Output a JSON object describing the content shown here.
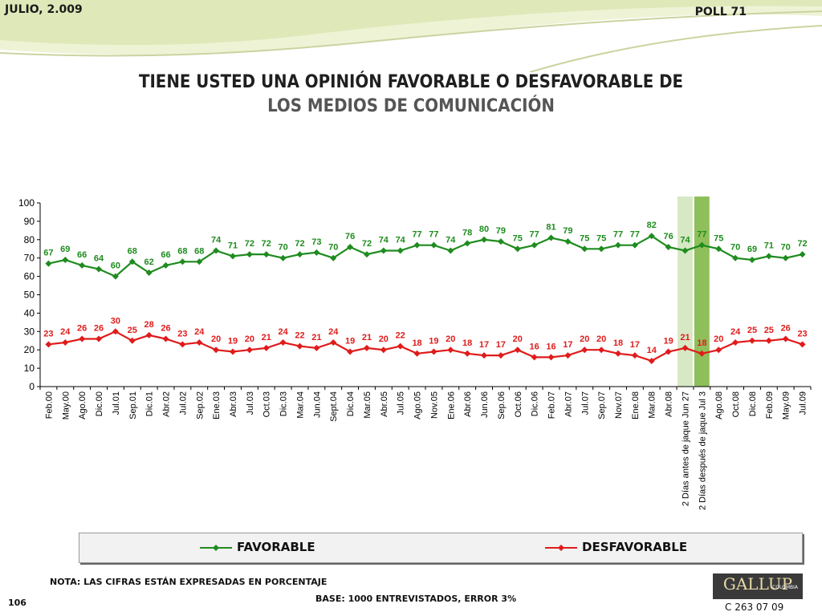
{
  "header": {
    "date": "JULIO, 2.009",
    "poll": "POLL 71"
  },
  "title": {
    "line1": "TIENE USTED UNA OPINIÓN FAVORABLE O DESFAVORABLE DE",
    "line2": "LOS MEDIOS DE COMUNICACIÓN"
  },
  "footer": {
    "note": "NOTA: LAS CIFRAS ESTÁN EXPRESADAS EN PORCENTAJE",
    "base": "BASE: 1000 ENTREVISTADOS, ERROR 3%",
    "page": "106",
    "logo": "GALLUP",
    "logo_sub": "COLOMBIA",
    "code": "C 263 07 09"
  },
  "colors": {
    "favorable": "#1e8c1e",
    "desfavorable": "#e01b1b",
    "band_light": "#d6e8c4",
    "band_dark": "#8fbf5a"
  },
  "chart_data": {
    "type": "line",
    "ylim": [
      0,
      100
    ],
    "yticks": [
      0,
      10,
      20,
      30,
      40,
      50,
      60,
      70,
      80,
      90,
      100
    ],
    "grid": false,
    "legend_position": "bottom",
    "highlighted_categories": [
      "2 Días antes de jaque Jun 27",
      "2 Días después de jaque Jul 3"
    ],
    "categories": [
      "Feb.00",
      "May.00",
      "Ago.00",
      "Dic.00",
      "Jul.01",
      "Sep.01",
      "Dic.01",
      "Abr.02",
      "Jul.02",
      "Sep.02",
      "Ene.03",
      "Abr.03",
      "Jul.03",
      "Oct.03",
      "Dic.03",
      "Mar.04",
      "Jun.04",
      "Sept.04",
      "Dic.04",
      "Mar.05",
      "Abr.05",
      "Jul.05",
      "Ago.05",
      "Nov.05",
      "Ene.06",
      "Abr.06",
      "Jun.06",
      "Sep.06",
      "Oct.06",
      "Dic.06",
      "Feb.07",
      "Abr.07",
      "Jul.07",
      "Sep.07",
      "Nov.07",
      "Ene.08",
      "Mar.08",
      "Abr.08",
      "2 Días antes de jaque Jun 27",
      "2 Días después de jaque Jul 3",
      "Ago.08",
      "Oct.08",
      "Dic.08",
      "Feb.09",
      "May.09",
      "Jul.09"
    ],
    "series": [
      {
        "name": "FAVORABLE",
        "values": [
          67,
          69,
          66,
          64,
          60,
          68,
          62,
          66,
          68,
          68,
          74,
          71,
          72,
          72,
          70,
          72,
          73,
          70,
          76,
          72,
          74,
          74,
          77,
          77,
          74,
          78,
          80,
          79,
          75,
          77,
          81,
          79,
          75,
          75,
          77,
          77,
          82,
          76,
          74,
          77,
          75,
          70,
          69,
          71,
          70,
          72
        ]
      },
      {
        "name": "DESFAVORABLE",
        "values": [
          23,
          24,
          26,
          26,
          30,
          25,
          28,
          26,
          23,
          24,
          20,
          19,
          20,
          21,
          24,
          22,
          21,
          24,
          19,
          21,
          20,
          22,
          18,
          19,
          20,
          18,
          17,
          17,
          20,
          16,
          16,
          17,
          20,
          20,
          18,
          17,
          14,
          19,
          21,
          18,
          20,
          24,
          25,
          25,
          26,
          23
        ]
      }
    ]
  }
}
